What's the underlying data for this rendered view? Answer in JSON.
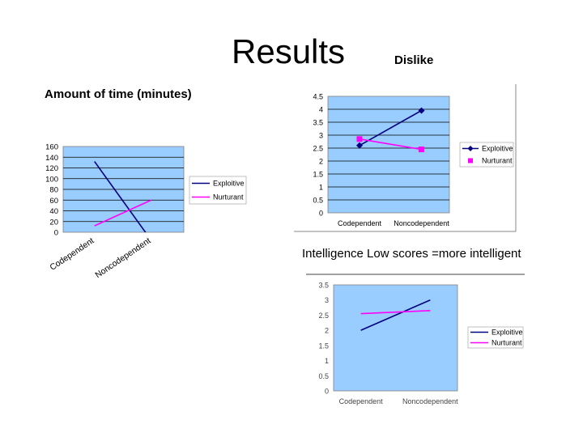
{
  "slide": {
    "title": "Results",
    "dislike_label": "Dislike",
    "time_label": "Amount of time (minutes)",
    "intelligence_label": "Intelligence Low scores =more intelligent"
  },
  "colors": {
    "plot_background": "#99ccff",
    "exploitive": "#000080",
    "nurturant": "#ff00ff"
  },
  "chart_data": [
    {
      "id": "time",
      "type": "line",
      "title": "",
      "xlabel": "",
      "ylabel": "",
      "categories": [
        "Codependent",
        "Noncodependent"
      ],
      "yticks": [
        "0",
        "20",
        "40",
        "60",
        "80",
        "100",
        "120",
        "140",
        "160"
      ],
      "ylim": [
        0,
        160
      ],
      "grid": true,
      "legend": "right",
      "series": [
        {
          "name": "Exploitive",
          "values": [
            132,
            -15
          ],
          "color": "#000080",
          "marker": "none"
        },
        {
          "name": "Nurturant",
          "values": [
            12,
            60
          ],
          "color": "#ff00ff",
          "marker": "none"
        }
      ]
    },
    {
      "id": "dislike",
      "type": "line",
      "title": "",
      "xlabel": "",
      "ylabel": "",
      "categories": [
        "Codependent",
        "Noncodependent"
      ],
      "yticks": [
        "0",
        "0.5",
        "1",
        "1.5",
        "2",
        "2.5",
        "3",
        "3.5",
        "4",
        "4.5"
      ],
      "ylim": [
        0,
        4.5
      ],
      "grid": true,
      "legend": "right",
      "series": [
        {
          "name": "Exploitive",
          "values": [
            2.6,
            3.95
          ],
          "color": "#000080",
          "marker": "diamond"
        },
        {
          "name": "Nurturant",
          "values": [
            2.85,
            2.45
          ],
          "color": "#ff00ff",
          "marker": "square"
        }
      ]
    },
    {
      "id": "intelligence",
      "type": "line",
      "title": "",
      "xlabel": "",
      "ylabel": "",
      "categories": [
        "Codependent",
        "Noncodependent"
      ],
      "yticks": [
        "0",
        "0.5",
        "1",
        "1.5",
        "2",
        "2.5",
        "3",
        "3.5"
      ],
      "ylim": [
        0,
        3.5
      ],
      "grid": false,
      "legend": "right",
      "series": [
        {
          "name": "Exploitive",
          "values": [
            2,
            3
          ],
          "color": "#000080",
          "marker": "none"
        },
        {
          "name": "Nurturant",
          "values": [
            2.55,
            2.65
          ],
          "color": "#ff00ff",
          "marker": "none"
        }
      ]
    }
  ]
}
